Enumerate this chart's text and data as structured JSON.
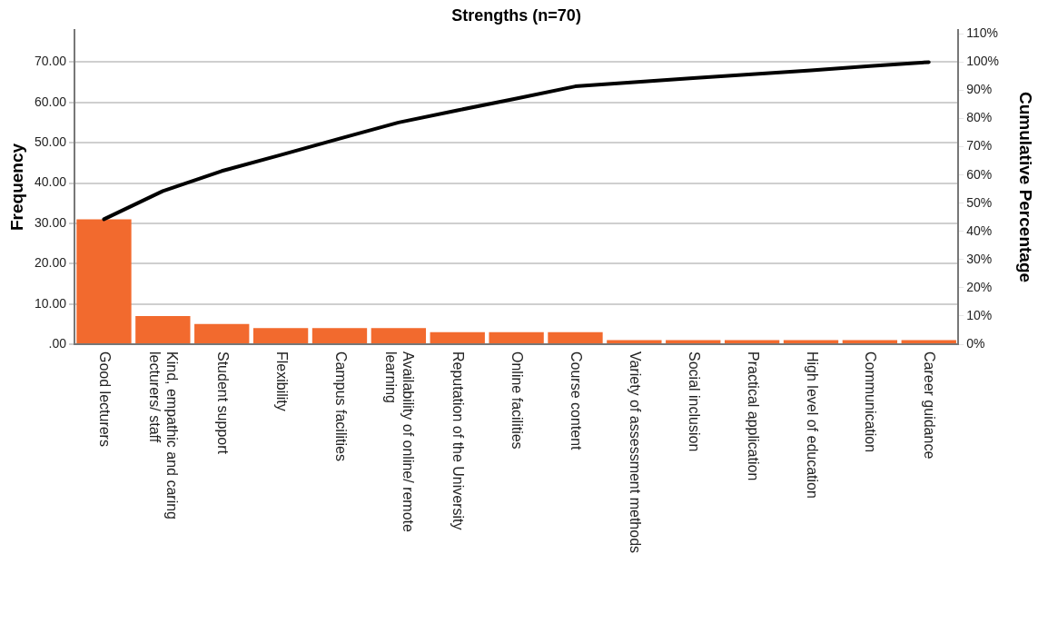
{
  "chart_data": {
    "type": "bar",
    "title": "Strengths (n=70)",
    "ylabel": "Frequency",
    "y2label": "Cumulative Percentage",
    "categories": [
      "Good lecturers",
      "Kind, empathic and caring lecturers/ staff",
      "Student support",
      "Flexibility",
      "Campus facilities",
      "Availability of online/ remote learning",
      "Reputation of the University",
      "Online facilities",
      "Course content",
      "Variety of assessment methods",
      "Social inclusion",
      "Practical application",
      "High level of education",
      "Communication",
      "Career guidance"
    ],
    "series": [
      {
        "color": "#f26a2e",
        "values": [
          31,
          7,
          5,
          4,
          4,
          4,
          3,
          3,
          3,
          1,
          1,
          1,
          1,
          1,
          1
        ]
      },
      {
        "type": "line",
        "axis": "y2",
        "color": "#000000",
        "values": [
          44.3,
          54.3,
          61.4,
          67.1,
          72.9,
          78.6,
          82.9,
          87.1,
          91.4,
          92.9,
          94.3,
          95.7,
          97.1,
          98.6,
          100
        ]
      }
    ],
    "ylim": [
      0,
      78
    ],
    "yticks": [
      {
        "value": 0,
        "label": ".00"
      },
      {
        "value": 10,
        "label": "10.00"
      },
      {
        "value": 20,
        "label": "20.00"
      },
      {
        "value": 30,
        "label": "30.00"
      },
      {
        "value": 40,
        "label": "40.00"
      },
      {
        "value": 50,
        "label": "50.00"
      },
      {
        "value": 60,
        "label": "60.00"
      },
      {
        "value": 70,
        "label": "70.00"
      }
    ],
    "y2lim": [
      0,
      111.4
    ],
    "y2ticks": [
      {
        "value": 0,
        "label": "0%"
      },
      {
        "value": 10,
        "label": "10%"
      },
      {
        "value": 20,
        "label": "20%"
      },
      {
        "value": 30,
        "label": "30%"
      },
      {
        "value": 40,
        "label": "40%"
      },
      {
        "value": 50,
        "label": "50%"
      },
      {
        "value": 60,
        "label": "60%"
      },
      {
        "value": 70,
        "label": "70%"
      },
      {
        "value": 80,
        "label": "80%"
      },
      {
        "value": 90,
        "label": "90%"
      },
      {
        "value": 100,
        "label": "100%"
      },
      {
        "value": 110,
        "label": "110%"
      }
    ],
    "grid": "y",
    "legend": false,
    "marker": "none",
    "line_style": "solid"
  }
}
